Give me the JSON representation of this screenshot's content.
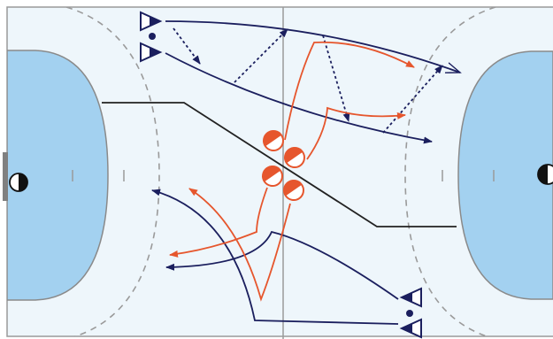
{
  "diagram": {
    "kind": "handball-court-tactic",
    "colors": {
      "court_bg": "#eef6fb",
      "court_line": "#9a9a9a",
      "goal_area": "#a3d1f0",
      "goal_area_line": "#8a8a8a",
      "dashed_line": "#9a9a9a",
      "attack": "#1b1f5e",
      "defense": "#e6562d",
      "divider": "#222222",
      "goal_post": "#808080"
    },
    "goalkeepers": [
      {
        "name": "goalkeeper-left",
        "icon": "half-black-circle"
      },
      {
        "name": "goalkeeper-right",
        "icon": "half-black-circle"
      }
    ],
    "attackers": [
      {
        "name": "attacker-top-1",
        "icon": "navy-triangle-marker"
      },
      {
        "name": "attacker-top-2",
        "icon": "navy-triangle-marker"
      },
      {
        "name": "attacker-bottom-1",
        "icon": "navy-triangle-marker"
      },
      {
        "name": "attacker-bottom-2",
        "icon": "navy-triangle-marker"
      }
    ],
    "defenders": [
      {
        "name": "defender-1",
        "icon": "orange-half-circle"
      },
      {
        "name": "defender-2",
        "icon": "orange-half-circle"
      },
      {
        "name": "defender-3",
        "icon": "orange-half-circle"
      },
      {
        "name": "defender-4",
        "icon": "orange-half-circle"
      }
    ],
    "balls": [
      {
        "name": "ball-top",
        "icon": "ball-dot"
      },
      {
        "name": "ball-bottom",
        "icon": "ball-dot"
      }
    ]
  }
}
